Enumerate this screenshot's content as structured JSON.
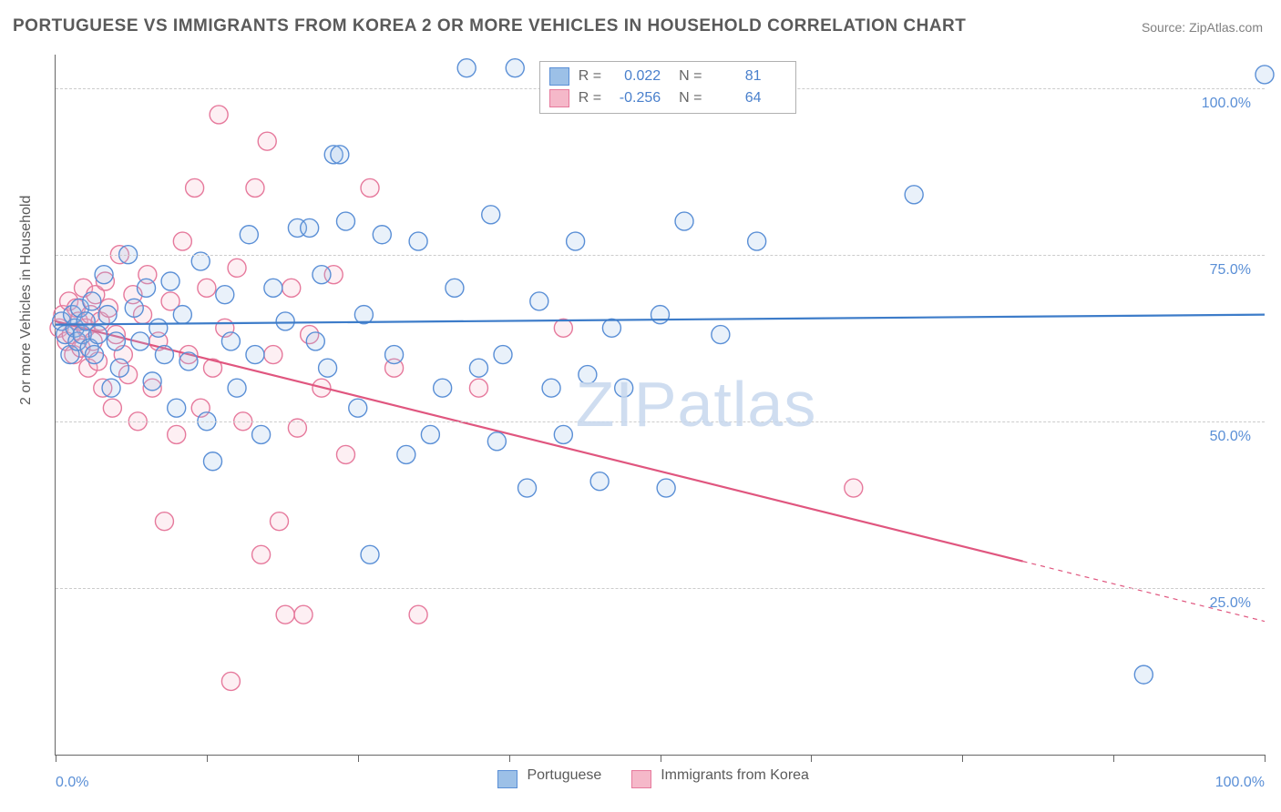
{
  "title": "PORTUGUESE VS IMMIGRANTS FROM KOREA 2 OR MORE VEHICLES IN HOUSEHOLD CORRELATION CHART",
  "source": "Source: ZipAtlas.com",
  "y_axis_label": "2 or more Vehicles in Household",
  "watermark": "ZIPatlas",
  "chart": {
    "type": "scatter-regression",
    "background_color": "#ffffff",
    "grid_color": "#cccccc",
    "axis_color": "#666666",
    "xlim": [
      0,
      100
    ],
    "ylim": [
      0,
      105
    ],
    "x_tick_positions": [
      0,
      12.5,
      25,
      37.5,
      50,
      62.5,
      75,
      87.5,
      100
    ],
    "x_tick_labels_shown": {
      "0": "0.0%",
      "100": "100.0%"
    },
    "y_gridlines": [
      25,
      50,
      75,
      100
    ],
    "y_tick_labels": {
      "25": "25.0%",
      "50": "50.0%",
      "75": "75.0%",
      "100": "100.0%"
    },
    "marker_radius": 10,
    "marker_fill_opacity": 0.22,
    "marker_stroke_width": 1.4,
    "line_width": 2.2,
    "series": [
      {
        "name": "Portuguese",
        "color_fill": "#9cc0e7",
        "color_stroke": "#5a8fd6",
        "line_color": "#3d7cc9",
        "R": "0.022",
        "N": "81",
        "regression": {
          "x1": 0,
          "y1": 64.5,
          "x2": 100,
          "y2": 66.0,
          "solid_to_x": 100
        },
        "points": [
          [
            0.5,
            65
          ],
          [
            0.8,
            63
          ],
          [
            1.2,
            60
          ],
          [
            1.4,
            66
          ],
          [
            1.6,
            64
          ],
          [
            1.8,
            62
          ],
          [
            2.0,
            67
          ],
          [
            2.2,
            63
          ],
          [
            2.5,
            65
          ],
          [
            2.8,
            61
          ],
          [
            3.0,
            68
          ],
          [
            3.2,
            60
          ],
          [
            3.5,
            63
          ],
          [
            4.0,
            72
          ],
          [
            4.3,
            66
          ],
          [
            4.6,
            55
          ],
          [
            5.0,
            62
          ],
          [
            5.3,
            58
          ],
          [
            6.0,
            75
          ],
          [
            6.5,
            67
          ],
          [
            7.0,
            62
          ],
          [
            7.5,
            70
          ],
          [
            8.0,
            56
          ],
          [
            8.5,
            64
          ],
          [
            9.0,
            60
          ],
          [
            9.5,
            71
          ],
          [
            10.0,
            52
          ],
          [
            10.5,
            66
          ],
          [
            11.0,
            59
          ],
          [
            12.0,
            74
          ],
          [
            12.5,
            50
          ],
          [
            13.0,
            44
          ],
          [
            14.0,
            69
          ],
          [
            14.5,
            62
          ],
          [
            15.0,
            55
          ],
          [
            16.0,
            78
          ],
          [
            16.5,
            60
          ],
          [
            17.0,
            48
          ],
          [
            18.0,
            70
          ],
          [
            19.0,
            65
          ],
          [
            20.0,
            79
          ],
          [
            21.0,
            79
          ],
          [
            21.5,
            62
          ],
          [
            22.0,
            72
          ],
          [
            22.5,
            58
          ],
          [
            23.0,
            90
          ],
          [
            23.5,
            90
          ],
          [
            24.0,
            80
          ],
          [
            25.0,
            52
          ],
          [
            25.5,
            66
          ],
          [
            26.0,
            30
          ],
          [
            27.0,
            78
          ],
          [
            28.0,
            60
          ],
          [
            29.0,
            45
          ],
          [
            30.0,
            77
          ],
          [
            31.0,
            48
          ],
          [
            32.0,
            55
          ],
          [
            33.0,
            70
          ],
          [
            34.0,
            103
          ],
          [
            35.0,
            58
          ],
          [
            36.0,
            81
          ],
          [
            36.5,
            47
          ],
          [
            37.0,
            60
          ],
          [
            38.0,
            103
          ],
          [
            39.0,
            40
          ],
          [
            40.0,
            68
          ],
          [
            41.0,
            55
          ],
          [
            42.0,
            48
          ],
          [
            43.0,
            77
          ],
          [
            44.0,
            57
          ],
          [
            45.0,
            41
          ],
          [
            46.0,
            64
          ],
          [
            47.0,
            55
          ],
          [
            50.0,
            66
          ],
          [
            50.5,
            40
          ],
          [
            52.0,
            80
          ],
          [
            55.0,
            63
          ],
          [
            58.0,
            77
          ],
          [
            71.0,
            84
          ],
          [
            90.0,
            12
          ],
          [
            100.0,
            102
          ]
        ]
      },
      {
        "name": "Immigrants from Korea",
        "color_fill": "#f5b8c9",
        "color_stroke": "#e6799c",
        "line_color": "#e0567f",
        "R": "-0.256",
        "N": "64",
        "regression": {
          "x1": 0,
          "y1": 65.0,
          "x2": 100,
          "y2": 20.0,
          "solid_to_x": 80
        },
        "points": [
          [
            0.3,
            64
          ],
          [
            0.6,
            66
          ],
          [
            0.9,
            62
          ],
          [
            1.1,
            68
          ],
          [
            1.3,
            63
          ],
          [
            1.5,
            60
          ],
          [
            1.7,
            67
          ],
          [
            1.9,
            65
          ],
          [
            2.1,
            61
          ],
          [
            2.3,
            70
          ],
          [
            2.5,
            64
          ],
          [
            2.7,
            58
          ],
          [
            2.9,
            66
          ],
          [
            3.1,
            62
          ],
          [
            3.3,
            69
          ],
          [
            3.5,
            59
          ],
          [
            3.7,
            65
          ],
          [
            3.9,
            55
          ],
          [
            4.1,
            71
          ],
          [
            4.4,
            67
          ],
          [
            4.7,
            52
          ],
          [
            5.0,
            63
          ],
          [
            5.3,
            75
          ],
          [
            5.6,
            60
          ],
          [
            6.0,
            57
          ],
          [
            6.4,
            69
          ],
          [
            6.8,
            50
          ],
          [
            7.2,
            66
          ],
          [
            7.6,
            72
          ],
          [
            8.0,
            55
          ],
          [
            8.5,
            62
          ],
          [
            9.0,
            35
          ],
          [
            9.5,
            68
          ],
          [
            10.0,
            48
          ],
          [
            10.5,
            77
          ],
          [
            11.0,
            60
          ],
          [
            11.5,
            85
          ],
          [
            12.0,
            52
          ],
          [
            12.5,
            70
          ],
          [
            13.0,
            58
          ],
          [
            13.5,
            96
          ],
          [
            14.0,
            64
          ],
          [
            14.5,
            11
          ],
          [
            15.0,
            73
          ],
          [
            15.5,
            50
          ],
          [
            16.5,
            85
          ],
          [
            17.0,
            30
          ],
          [
            17.5,
            92
          ],
          [
            18.0,
            60
          ],
          [
            18.5,
            35
          ],
          [
            19.0,
            21
          ],
          [
            19.5,
            70
          ],
          [
            20.0,
            49
          ],
          [
            20.5,
            21
          ],
          [
            21.0,
            63
          ],
          [
            22.0,
            55
          ],
          [
            23.0,
            72
          ],
          [
            24.0,
            45
          ],
          [
            26.0,
            85
          ],
          [
            28.0,
            58
          ],
          [
            30.0,
            21
          ],
          [
            35.0,
            55
          ],
          [
            42.0,
            64
          ],
          [
            66.0,
            40
          ]
        ]
      }
    ]
  },
  "legend_top": {
    "labels": {
      "R": "R =",
      "N": "N ="
    }
  },
  "legend_bottom": {
    "items": [
      "Portuguese",
      "Immigrants from Korea"
    ]
  }
}
